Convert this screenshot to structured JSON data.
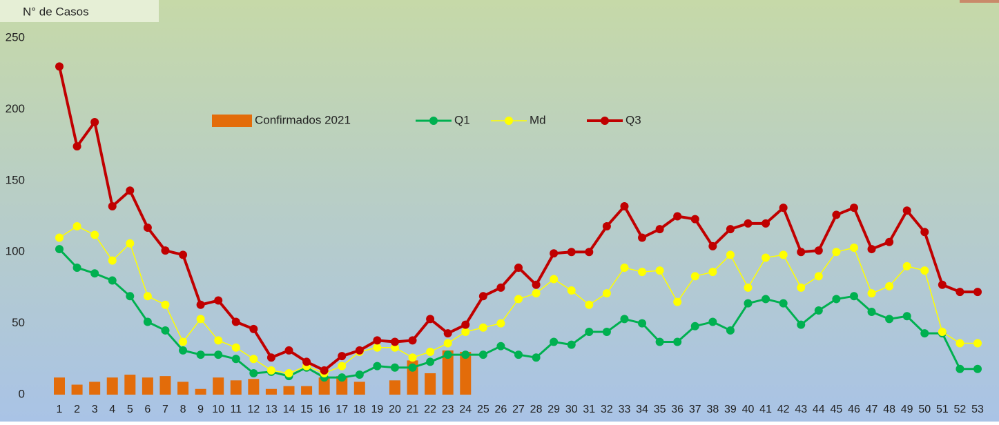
{
  "chart_data": {
    "type": "bar-line",
    "y_label": "N° de Casos",
    "categories": [
      1,
      2,
      3,
      4,
      5,
      6,
      7,
      8,
      9,
      10,
      11,
      12,
      13,
      14,
      15,
      16,
      17,
      18,
      19,
      20,
      21,
      22,
      23,
      24,
      25,
      26,
      27,
      28,
      29,
      30,
      31,
      32,
      33,
      34,
      35,
      36,
      37,
      38,
      39,
      40,
      41,
      42,
      43,
      44,
      45,
      46,
      47,
      48,
      49,
      50,
      51,
      52,
      53
    ],
    "series": [
      {
        "name": "Confirmados 2021",
        "type": "bar",
        "color": "#e36c0a",
        "values": [
          12,
          7,
          9,
          12,
          14,
          12,
          13,
          9,
          4,
          12,
          10,
          11,
          4,
          6,
          6,
          12,
          13,
          9,
          0,
          10,
          24,
          15,
          31,
          30,
          null,
          null,
          null,
          null,
          null,
          null,
          null,
          null,
          null,
          null,
          null,
          null,
          null,
          null,
          null,
          null,
          null,
          null,
          null,
          null,
          null,
          null,
          null,
          null,
          null,
          null,
          null,
          null,
          null
        ]
      },
      {
        "name": "Q1",
        "type": "line",
        "color": "#00b050",
        "values": [
          102,
          89,
          85,
          80,
          69,
          51,
          45,
          31,
          28,
          28,
          25,
          15,
          16,
          13,
          19,
          12,
          12,
          14,
          20,
          19,
          19,
          23,
          28,
          28,
          28,
          34,
          28,
          26,
          37,
          35,
          44,
          44,
          53,
          50,
          37,
          37,
          48,
          51,
          45,
          64,
          67,
          64,
          49,
          59,
          67,
          69,
          58,
          53,
          55,
          43,
          43,
          18,
          18
        ]
      },
      {
        "name": "Md",
        "type": "line",
        "color": "#ffff00",
        "values": [
          110,
          118,
          112,
          94,
          106,
          69,
          63,
          37,
          53,
          38,
          33,
          25,
          17,
          15,
          20,
          15,
          20,
          30,
          33,
          33,
          26,
          30,
          36,
          44,
          47,
          50,
          67,
          71,
          81,
          73,
          63,
          71,
          89,
          86,
          87,
          65,
          83,
          86,
          98,
          75,
          96,
          98,
          75,
          83,
          100,
          103,
          71,
          76,
          90,
          87,
          44,
          36,
          36
        ]
      },
      {
        "name": "Q3",
        "type": "line",
        "color": "#c00000",
        "values": [
          230,
          174,
          191,
          132,
          143,
          117,
          101,
          98,
          63,
          66,
          51,
          46,
          26,
          31,
          23,
          17,
          27,
          31,
          38,
          37,
          38,
          53,
          43,
          49,
          69,
          75,
          89,
          77,
          99,
          100,
          100,
          118,
          132,
          110,
          116,
          125,
          123,
          104,
          116,
          120,
          120,
          131,
          100,
          101,
          126,
          131,
          102,
          107,
          129,
          114,
          77,
          72,
          72
        ]
      }
    ],
    "ylim": [
      0,
      250
    ],
    "yticks": [
      0,
      50,
      100,
      150,
      200,
      250
    ]
  }
}
